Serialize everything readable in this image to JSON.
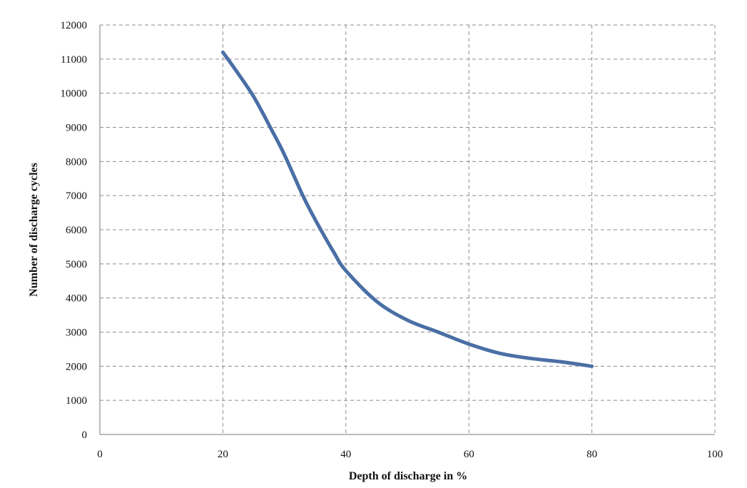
{
  "chart_data": {
    "type": "line",
    "title": "",
    "xlabel": "Depth of discharge in %",
    "ylabel": "Number of discharge cycles",
    "xlim": [
      0,
      100
    ],
    "ylim": [
      0,
      12000
    ],
    "xticks": [
      0,
      20,
      40,
      60,
      80,
      100
    ],
    "yticks": [
      0,
      1000,
      2000,
      3000,
      4000,
      5000,
      6000,
      7000,
      8000,
      9000,
      10000,
      11000,
      12000
    ],
    "xtick_labels": [
      "0",
      "20",
      "40",
      "60",
      "80",
      "100"
    ],
    "ytick_labels": [
      "0",
      "1000",
      "2000",
      "3000",
      "4000",
      "5000",
      "6000",
      "7000",
      "8000",
      "9000",
      "10000",
      "11000",
      "12000"
    ],
    "grid": true,
    "grid_style": "dashed",
    "legend": "none",
    "series": [
      {
        "color": "#4a6fa5",
        "x": [
          20,
          22,
          25,
          28,
          30,
          33,
          35,
          38,
          40,
          45,
          50,
          55,
          60,
          65,
          70,
          75,
          80
        ],
        "y": [
          11200,
          10700,
          9900,
          8900,
          8200,
          7000,
          6300,
          5350,
          4800,
          3900,
          3350,
          3000,
          2650,
          2380,
          2230,
          2130,
          2000
        ]
      }
    ]
  }
}
